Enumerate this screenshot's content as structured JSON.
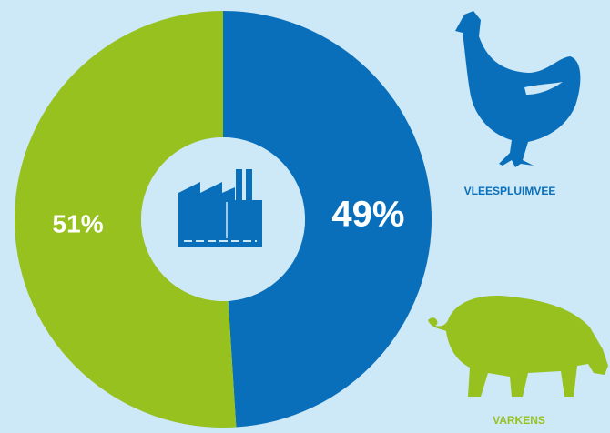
{
  "chart_data": {
    "type": "pie",
    "categories": [
      "VLEESPLUIMVEE",
      "VARKENS"
    ],
    "values": [
      49,
      51
    ],
    "value_labels": [
      "49%",
      "51%"
    ],
    "colors": [
      "#0a6fba",
      "#96c11f"
    ]
  }
}
